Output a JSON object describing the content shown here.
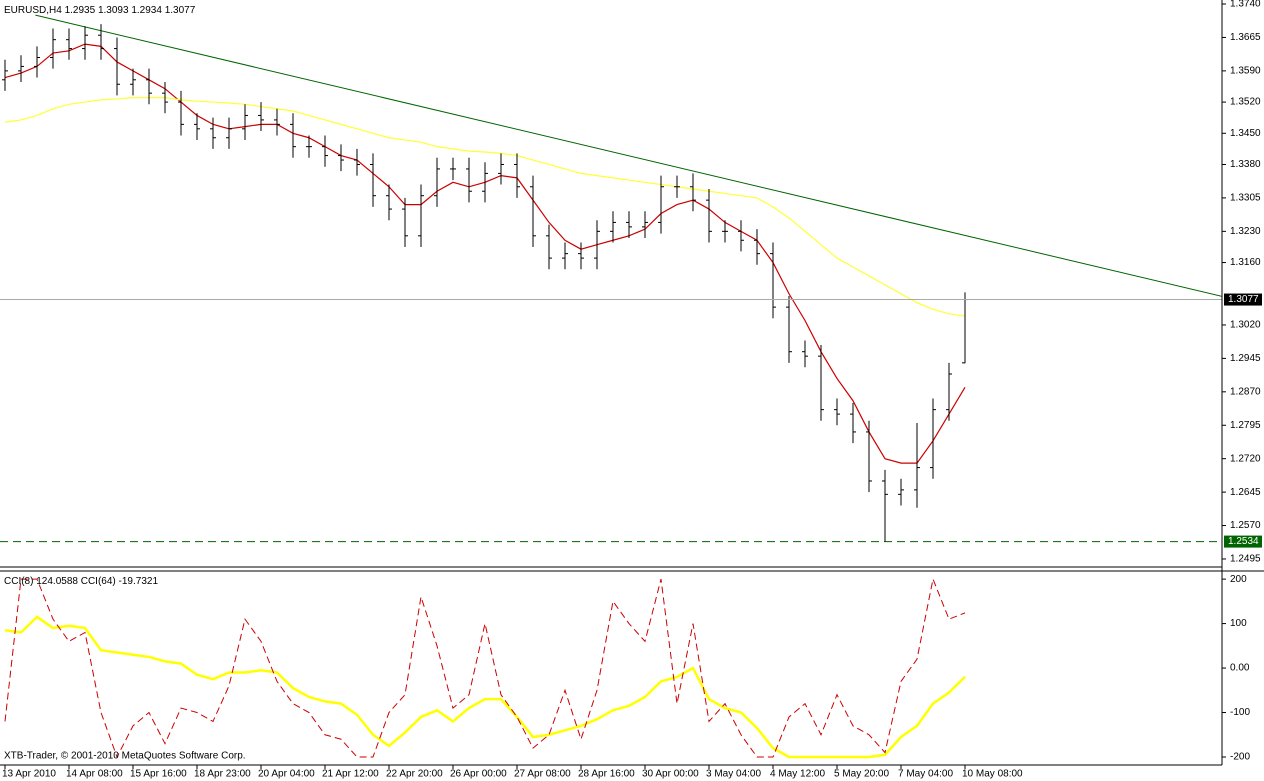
{
  "chart_data": [
    {
      "type": "ohlc",
      "symbol": "EURUSD,H4",
      "color": "#000000",
      "xticks": [
        {
          "value": 0,
          "label": "13 Apr 2010"
        },
        {
          "value": 4,
          "label": "14 Apr 08:00"
        },
        {
          "value": 8,
          "label": "15 Apr 16:00"
        },
        {
          "value": 12,
          "label": "18 Apr 23:00"
        },
        {
          "value": 16,
          "label": "20 Apr 04:00"
        },
        {
          "value": 20,
          "label": "21 Apr 12:00"
        },
        {
          "value": 24,
          "label": "22 Apr 20:00"
        },
        {
          "value": 28,
          "label": "26 Apr 00:00"
        },
        {
          "value": 32,
          "label": "27 Apr 08:00"
        },
        {
          "value": 36,
          "label": "28 Apr 16:00"
        },
        {
          "value": 40,
          "label": "30 Apr 00:00"
        },
        {
          "value": 44,
          "label": "3 May 04:00"
        },
        {
          "value": 48,
          "label": "4 May 12:00"
        },
        {
          "value": 52,
          "label": "5 May 20:00"
        },
        {
          "value": 56,
          "label": "7 May 04:00"
        },
        {
          "value": 60,
          "label": "10 May 08:00"
        }
      ],
      "ylim": [
        1.2477,
        1.3749
      ],
      "yticks": [
        {
          "value": 1.374,
          "label": "1.3740"
        },
        {
          "value": 1.3665,
          "label": "1.3665"
        },
        {
          "value": 1.359,
          "label": "1.3590"
        },
        {
          "value": 1.352,
          "label": "1.3520"
        },
        {
          "value": 1.345,
          "label": "1.3450"
        },
        {
          "value": 1.338,
          "label": "1.3380"
        },
        {
          "value": 1.3305,
          "label": "1.3305"
        },
        {
          "value": 1.323,
          "label": "1.3230"
        },
        {
          "value": 1.316,
          "label": "1.3160"
        },
        {
          "value": 1.302,
          "label": "1.3020"
        },
        {
          "value": 1.2945,
          "label": "1.2945"
        },
        {
          "value": 1.287,
          "label": "1.2870"
        },
        {
          "value": 1.2795,
          "label": "1.2795"
        },
        {
          "value": 1.272,
          "label": "1.2720"
        },
        {
          "value": 1.2645,
          "label": "1.2645"
        },
        {
          "value": 1.257,
          "label": "1.2570"
        },
        {
          "value": 1.2495,
          "label": "1.2495"
        }
      ],
      "open": [
        1.357,
        1.359,
        1.36,
        1.362,
        1.366,
        1.364,
        1.367,
        1.364,
        1.356,
        1.357,
        1.354,
        1.352,
        1.347,
        1.346,
        1.344,
        1.346,
        1.349,
        1.348,
        1.347,
        1.342,
        1.342,
        1.34,
        1.339,
        1.338,
        1.331,
        1.328,
        1.322,
        1.331,
        1.337,
        1.337,
        1.332,
        1.336,
        1.338,
        1.333,
        1.322,
        1.317,
        1.318,
        1.317,
        1.323,
        1.325,
        1.324,
        1.325,
        1.333,
        1.333,
        1.33,
        1.323,
        1.323,
        1.321,
        1.318,
        1.306,
        1.296,
        1.295,
        1.283,
        1.282,
        1.278,
        1.267,
        1.264,
        1.265,
        1.27,
        1.283,
        1.2935
      ],
      "high": [
        1.3615,
        1.3625,
        1.3645,
        1.3685,
        1.3685,
        1.369,
        1.3695,
        1.3665,
        1.3595,
        1.3595,
        1.3565,
        1.3545,
        1.3495,
        1.3485,
        1.3485,
        1.3515,
        1.352,
        1.3505,
        1.3495,
        1.3445,
        1.3445,
        1.3425,
        1.3415,
        1.3405,
        1.3335,
        1.3305,
        1.3335,
        1.3395,
        1.3395,
        1.3395,
        1.3385,
        1.3405,
        1.3405,
        1.3355,
        1.3245,
        1.3205,
        1.3205,
        1.3255,
        1.3275,
        1.3275,
        1.3275,
        1.3355,
        1.3355,
        1.336,
        1.3325,
        1.3255,
        1.3255,
        1.3235,
        1.3205,
        1.3085,
        1.2985,
        1.2975,
        1.2855,
        1.2845,
        1.2805,
        1.2695,
        1.2675,
        1.28,
        1.2855,
        1.2935,
        1.3093
      ],
      "low": [
        1.3545,
        1.3565,
        1.3575,
        1.3595,
        1.3615,
        1.3615,
        1.3615,
        1.3535,
        1.3535,
        1.3515,
        1.3495,
        1.3445,
        1.3435,
        1.3415,
        1.3415,
        1.3435,
        1.3455,
        1.3445,
        1.3395,
        1.3395,
        1.3375,
        1.3365,
        1.3355,
        1.3285,
        1.3255,
        1.3195,
        1.3195,
        1.3285,
        1.3345,
        1.3295,
        1.3295,
        1.3335,
        1.3305,
        1.3195,
        1.3145,
        1.3145,
        1.3145,
        1.3145,
        1.3205,
        1.3215,
        1.3215,
        1.3225,
        1.3305,
        1.3275,
        1.3205,
        1.3205,
        1.3185,
        1.3155,
        1.3035,
        1.2935,
        1.2925,
        1.2805,
        1.2795,
        1.2755,
        1.2645,
        1.2534,
        1.2615,
        1.261,
        1.2675,
        1.2805,
        1.2934
      ],
      "close": [
        1.359,
        1.36,
        1.362,
        1.366,
        1.364,
        1.367,
        1.364,
        1.356,
        1.357,
        1.354,
        1.352,
        1.347,
        1.346,
        1.344,
        1.346,
        1.349,
        1.348,
        1.347,
        1.342,
        1.342,
        1.34,
        1.339,
        1.338,
        1.331,
        1.328,
        1.322,
        1.331,
        1.337,
        1.337,
        1.332,
        1.336,
        1.338,
        1.333,
        1.322,
        1.317,
        1.318,
        1.317,
        1.323,
        1.325,
        1.324,
        1.325,
        1.333,
        1.333,
        1.33,
        1.323,
        1.323,
        1.321,
        1.318,
        1.306,
        1.296,
        1.295,
        1.283,
        1.282,
        1.278,
        1.267,
        1.264,
        1.265,
        1.27,
        1.283,
        1.291,
        1.3077
      ],
      "series": [
        {
          "color": "#cc0000",
          "values": [
            1.3575,
            1.3585,
            1.36,
            1.363,
            1.3635,
            1.365,
            1.3645,
            1.361,
            1.359,
            1.357,
            1.355,
            1.352,
            1.349,
            1.347,
            1.346,
            1.3465,
            1.347,
            1.347,
            1.345,
            1.344,
            1.342,
            1.34,
            1.339,
            1.336,
            1.333,
            1.329,
            1.329,
            1.332,
            1.334,
            1.333,
            1.334,
            1.3355,
            1.335,
            1.33,
            1.325,
            1.321,
            1.319,
            1.32,
            1.321,
            1.322,
            1.3235,
            1.327,
            1.329,
            1.33,
            1.328,
            1.325,
            1.323,
            1.321,
            1.316,
            1.309,
            1.303,
            1.296,
            1.29,
            1.285,
            1.278,
            1.272,
            1.271,
            1.271,
            1.276,
            1.282,
            1.288
          ]
        },
        {
          "color": "#ffff33",
          "values": [
            1.3475,
            1.348,
            1.349,
            1.3505,
            1.3515,
            1.352,
            1.3525,
            1.3527,
            1.353,
            1.353,
            1.353,
            1.3525,
            1.3522,
            1.352,
            1.3518,
            1.3515,
            1.351,
            1.3505,
            1.35,
            1.349,
            1.348,
            1.347,
            1.346,
            1.345,
            1.344,
            1.3435,
            1.343,
            1.342,
            1.3415,
            1.341,
            1.3408,
            1.3405,
            1.34,
            1.339,
            1.338,
            1.337,
            1.336,
            1.3355,
            1.335,
            1.3345,
            1.334,
            1.3335,
            1.333,
            1.3325,
            1.332,
            1.3315,
            1.331,
            1.3305,
            1.3285,
            1.326,
            1.323,
            1.32,
            1.317,
            1.315,
            1.313,
            1.311,
            1.309,
            1.307,
            1.3055,
            1.3045,
            1.304
          ]
        }
      ],
      "trendline": {
        "color": "#006400",
        "x": [
          1.9,
          76.2
        ],
        "y": [
          1.3715,
          1.3083
        ]
      },
      "horizontal_line": {
        "color": "#006400",
        "value": 1.2534,
        "label": "1.2534"
      }
    },
    {
      "type": "line",
      "ylim": [
        -218,
        216
      ],
      "yticks": [
        200,
        100,
        {
          "value": 0,
          "label": "0.00"
        },
        -100,
        -200
      ],
      "series": [
        {
          "name": "CCI(8)",
          "color": "#cc0000",
          "dash": true,
          "value_label": "124.0588",
          "values": [
            -120,
            200,
            200,
            110,
            60,
            80,
            -100,
            -200,
            -130,
            -100,
            -170,
            -90,
            -100,
            -120,
            -40,
            110,
            60,
            -30,
            -80,
            -100,
            -150,
            -160,
            -200,
            -200,
            -100,
            -60,
            160,
            50,
            -90,
            -60,
            100,
            -60,
            -110,
            -180,
            -150,
            -50,
            -160,
            -50,
            150,
            100,
            60,
            200,
            -80,
            100,
            -120,
            -80,
            -150,
            -200,
            -200,
            -110,
            -80,
            -150,
            -60,
            -130,
            -150,
            -190,
            -30,
            20,
            200,
            110,
            124.0588
          ]
        },
        {
          "name": "CCI(64)",
          "color": "#ffff00",
          "dash": false,
          "value_label": "-19.7321",
          "values": [
            85,
            80,
            115,
            90,
            95,
            90,
            40,
            35,
            30,
            25,
            15,
            10,
            -15,
            -25,
            -10,
            -10,
            -5,
            -10,
            -45,
            -65,
            -75,
            -80,
            -105,
            -150,
            -175,
            -145,
            -110,
            -95,
            -120,
            -90,
            -70,
            -70,
            -110,
            -155,
            -150,
            -140,
            -130,
            -115,
            -95,
            -85,
            -65,
            -30,
            -20,
            0,
            -70,
            -90,
            -100,
            -135,
            -180,
            -200,
            -200,
            -200,
            -200,
            -200,
            -200,
            -195,
            -155,
            -130,
            -80,
            -55,
            -19.7321
          ]
        }
      ],
      "footer": "XTB-Trader, © 2001-2010 MetaQuotes Software Corp."
    }
  ]
}
